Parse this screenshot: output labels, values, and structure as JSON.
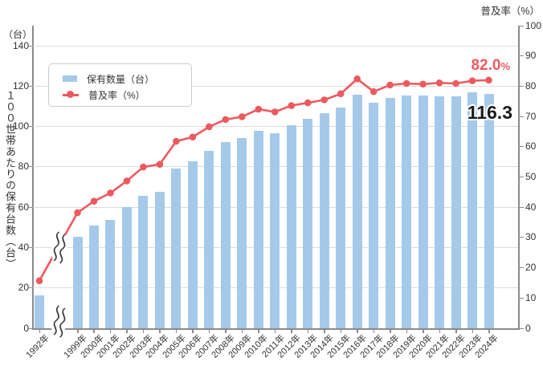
{
  "axis_titles": {
    "right_top": "普及率（%）",
    "left_unit": "（台）",
    "left_vertical": "１００世帯あたりの保有台数（台）"
  },
  "legend": {
    "items": [
      {
        "label": "保有数量（台）"
      },
      {
        "label": "普及率（%）"
      }
    ]
  },
  "annotations": {
    "rate_value": "82.0",
    "rate_unit": "%",
    "units_value": "116.3"
  },
  "colors": {
    "bar": "#A5CAE9",
    "line": "#EC5A5F",
    "grid": "#DCDCDC",
    "axis": "#8A8A8A",
    "text": "#333333"
  },
  "chart_data": {
    "type": "combo",
    "categories": [
      "1992年",
      "1999年",
      "2000年",
      "2001年",
      "2002年",
      "2003年",
      "2004年",
      "2005年",
      "2006年",
      "2007年",
      "2008年",
      "2009年",
      "2010年",
      "2011年",
      "2012年",
      "2013年",
      "2014年",
      "2015年",
      "2016年",
      "2017年",
      "2018年",
      "2019年",
      "2020年",
      "2021年",
      "2022年",
      "2023年",
      "2024年"
    ],
    "series": [
      {
        "name": "保有数量（台）",
        "type": "bar",
        "axis": "left",
        "values": [
          16.4,
          45.4,
          50.9,
          53.8,
          59.9,
          65.7,
          67.5,
          79.2,
          82.9,
          87.8,
          92.4,
          94.3,
          97.7,
          96.8,
          100.5,
          103.8,
          106.6,
          109.2,
          115.7,
          111.8,
          114.2,
          115.2,
          115.5,
          114.9,
          114.9,
          116.9,
          116.3
        ]
      },
      {
        "name": "普及率（%）",
        "type": "line",
        "axis": "right",
        "values": [
          15.7,
          38.2,
          42.0,
          44.7,
          48.7,
          53.3,
          54.2,
          61.8,
          63.2,
          66.6,
          69.0,
          69.9,
          72.4,
          71.5,
          73.6,
          74.5,
          75.5,
          77.5,
          82.4,
          78.2,
          80.4,
          80.9,
          80.7,
          81.1,
          80.9,
          81.8,
          82.0
        ]
      }
    ],
    "left_axis": {
      "min": 0,
      "max": 140,
      "tick_step": 20,
      "unit": "（台）",
      "label": "１００世帯あたりの保有台数（台）"
    },
    "right_axis": {
      "min": 0,
      "max": 100,
      "tick_step": 10,
      "label": "普及率（%）"
    },
    "axis_break_between": [
      "1992年",
      "1999年"
    ],
    "legend_position": "top-left-inside",
    "grid": "horizontal-only",
    "annotated_last_point": {
      "category": "2024年",
      "rate": "82.0%",
      "units": "116.3"
    }
  }
}
